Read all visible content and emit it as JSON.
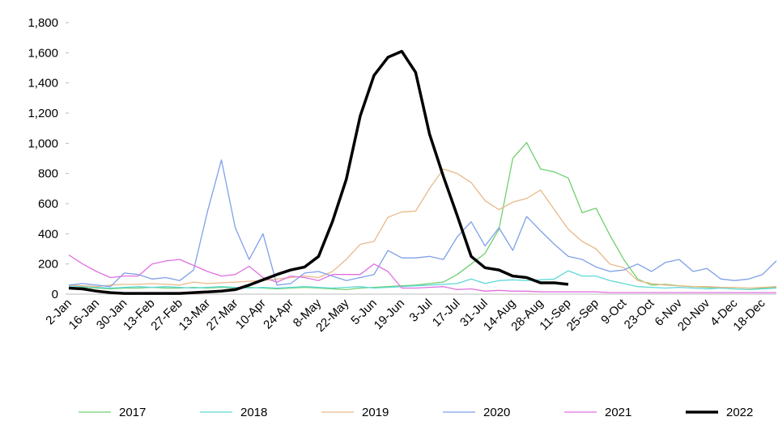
{
  "chart_data": {
    "type": "line",
    "categories": [
      "2-Jan",
      null,
      "16-Jan",
      null,
      "30-Jan",
      null,
      "13-Feb",
      null,
      "27-Feb",
      null,
      "13-Mar",
      null,
      "27-Mar",
      null,
      "10-Apr",
      null,
      "24-Apr",
      null,
      "8-May",
      null,
      "22-May",
      null,
      "5-Jun",
      null,
      "19-Jun",
      null,
      "3-Jul",
      null,
      "17-Jul",
      null,
      "31-Jul",
      null,
      "14-Aug",
      null,
      "28-Aug",
      null,
      "11-Sep",
      null,
      "25-Sep",
      null,
      "9-Oct",
      null,
      "23-Oct",
      null,
      "6-Nov",
      null,
      "20-Nov",
      null,
      "4-Dec",
      null,
      "18-Dec",
      null
    ],
    "ylim": [
      0,
      1800
    ],
    "yticks": [
      0,
      200,
      400,
      600,
      800,
      {
        "value": 1000,
        "label": "1,000"
      },
      {
        "value": 1200,
        "label": "1,200"
      },
      {
        "value": 1400,
        "label": "1,400"
      },
      {
        "value": 1600,
        "label": "1,600"
      },
      {
        "value": 1800,
        "label": "1,800"
      }
    ],
    "series": [
      {
        "name": "2017",
        "color": "#6fd06f",
        "width": 1.3,
        "values": [
          40,
          45,
          40,
          35,
          40,
          40,
          45,
          40,
          40,
          45,
          40,
          45,
          40,
          45,
          40,
          35,
          40,
          45,
          40,
          35,
          30,
          40,
          45,
          50,
          55,
          60,
          70,
          80,
          130,
          200,
          270,
          430,
          900,
          1005,
          830,
          810,
          770,
          540,
          570,
          390,
          230,
          100,
          60,
          65,
          55,
          50,
          45,
          40,
          35,
          30,
          40,
          45
        ]
      },
      {
        "name": "2018",
        "color": "#5fd8d8",
        "width": 1.3,
        "values": [
          55,
          50,
          45,
          40,
          45,
          50,
          45,
          50,
          45,
          40,
          45,
          50,
          45,
          40,
          45,
          40,
          45,
          50,
          45,
          40,
          45,
          50,
          40,
          45,
          50,
          55,
          60,
          65,
          70,
          100,
          70,
          90,
          95,
          90,
          95,
          100,
          155,
          120,
          120,
          90,
          70,
          50,
          45,
          40,
          45,
          40,
          35,
          40,
          35,
          30,
          35,
          40
        ]
      },
      {
        "name": "2019",
        "color": "#e8b98a",
        "width": 1.3,
        "values": [
          60,
          55,
          50,
          60,
          65,
          65,
          70,
          65,
          60,
          80,
          70,
          75,
          80,
          85,
          90,
          100,
          110,
          120,
          110,
          150,
          230,
          330,
          350,
          510,
          545,
          550,
          700,
          830,
          800,
          740,
          620,
          560,
          610,
          635,
          690,
          560,
          430,
          350,
          300,
          200,
          175,
          90,
          70,
          60,
          55,
          50,
          50,
          45,
          45,
          40,
          45,
          50
        ]
      },
      {
        "name": "2020",
        "color": "#7fa0e8",
        "width": 1.3,
        "values": [
          60,
          70,
          60,
          50,
          140,
          130,
          100,
          110,
          90,
          160,
          550,
          890,
          440,
          230,
          400,
          60,
          70,
          140,
          150,
          120,
          90,
          110,
          130,
          290,
          240,
          240,
          250,
          230,
          380,
          480,
          320,
          440,
          290,
          515,
          420,
          330,
          250,
          230,
          180,
          150,
          160,
          200,
          150,
          210,
          230,
          150,
          170,
          100,
          90,
          100,
          130,
          220
        ]
      },
      {
        "name": "2021",
        "color": "#e070e0",
        "width": 1.3,
        "values": [
          260,
          200,
          150,
          110,
          120,
          120,
          200,
          220,
          230,
          190,
          150,
          120,
          130,
          185,
          110,
          80,
          120,
          110,
          90,
          130,
          130,
          130,
          200,
          150,
          40,
          40,
          45,
          50,
          30,
          35,
          20,
          25,
          20,
          20,
          15,
          15,
          15,
          15,
          15,
          10,
          10,
          10,
          10,
          10,
          10,
          10,
          10,
          10,
          10,
          10,
          10,
          10
        ]
      },
      {
        "name": "2022",
        "color": "#000000",
        "width": 3.5,
        "values": [
          40,
          35,
          20,
          10,
          5,
          5,
          5,
          5,
          5,
          10,
          15,
          20,
          30,
          60,
          95,
          130,
          160,
          180,
          250,
          480,
          760,
          1180,
          1450,
          1570,
          1610,
          1470,
          1060,
          780,
          520,
          250,
          175,
          160,
          120,
          110,
          75,
          75,
          65,
          null,
          null,
          null,
          null,
          null,
          null,
          null,
          null,
          null,
          null,
          null,
          null,
          null,
          null,
          null
        ]
      }
    ]
  }
}
